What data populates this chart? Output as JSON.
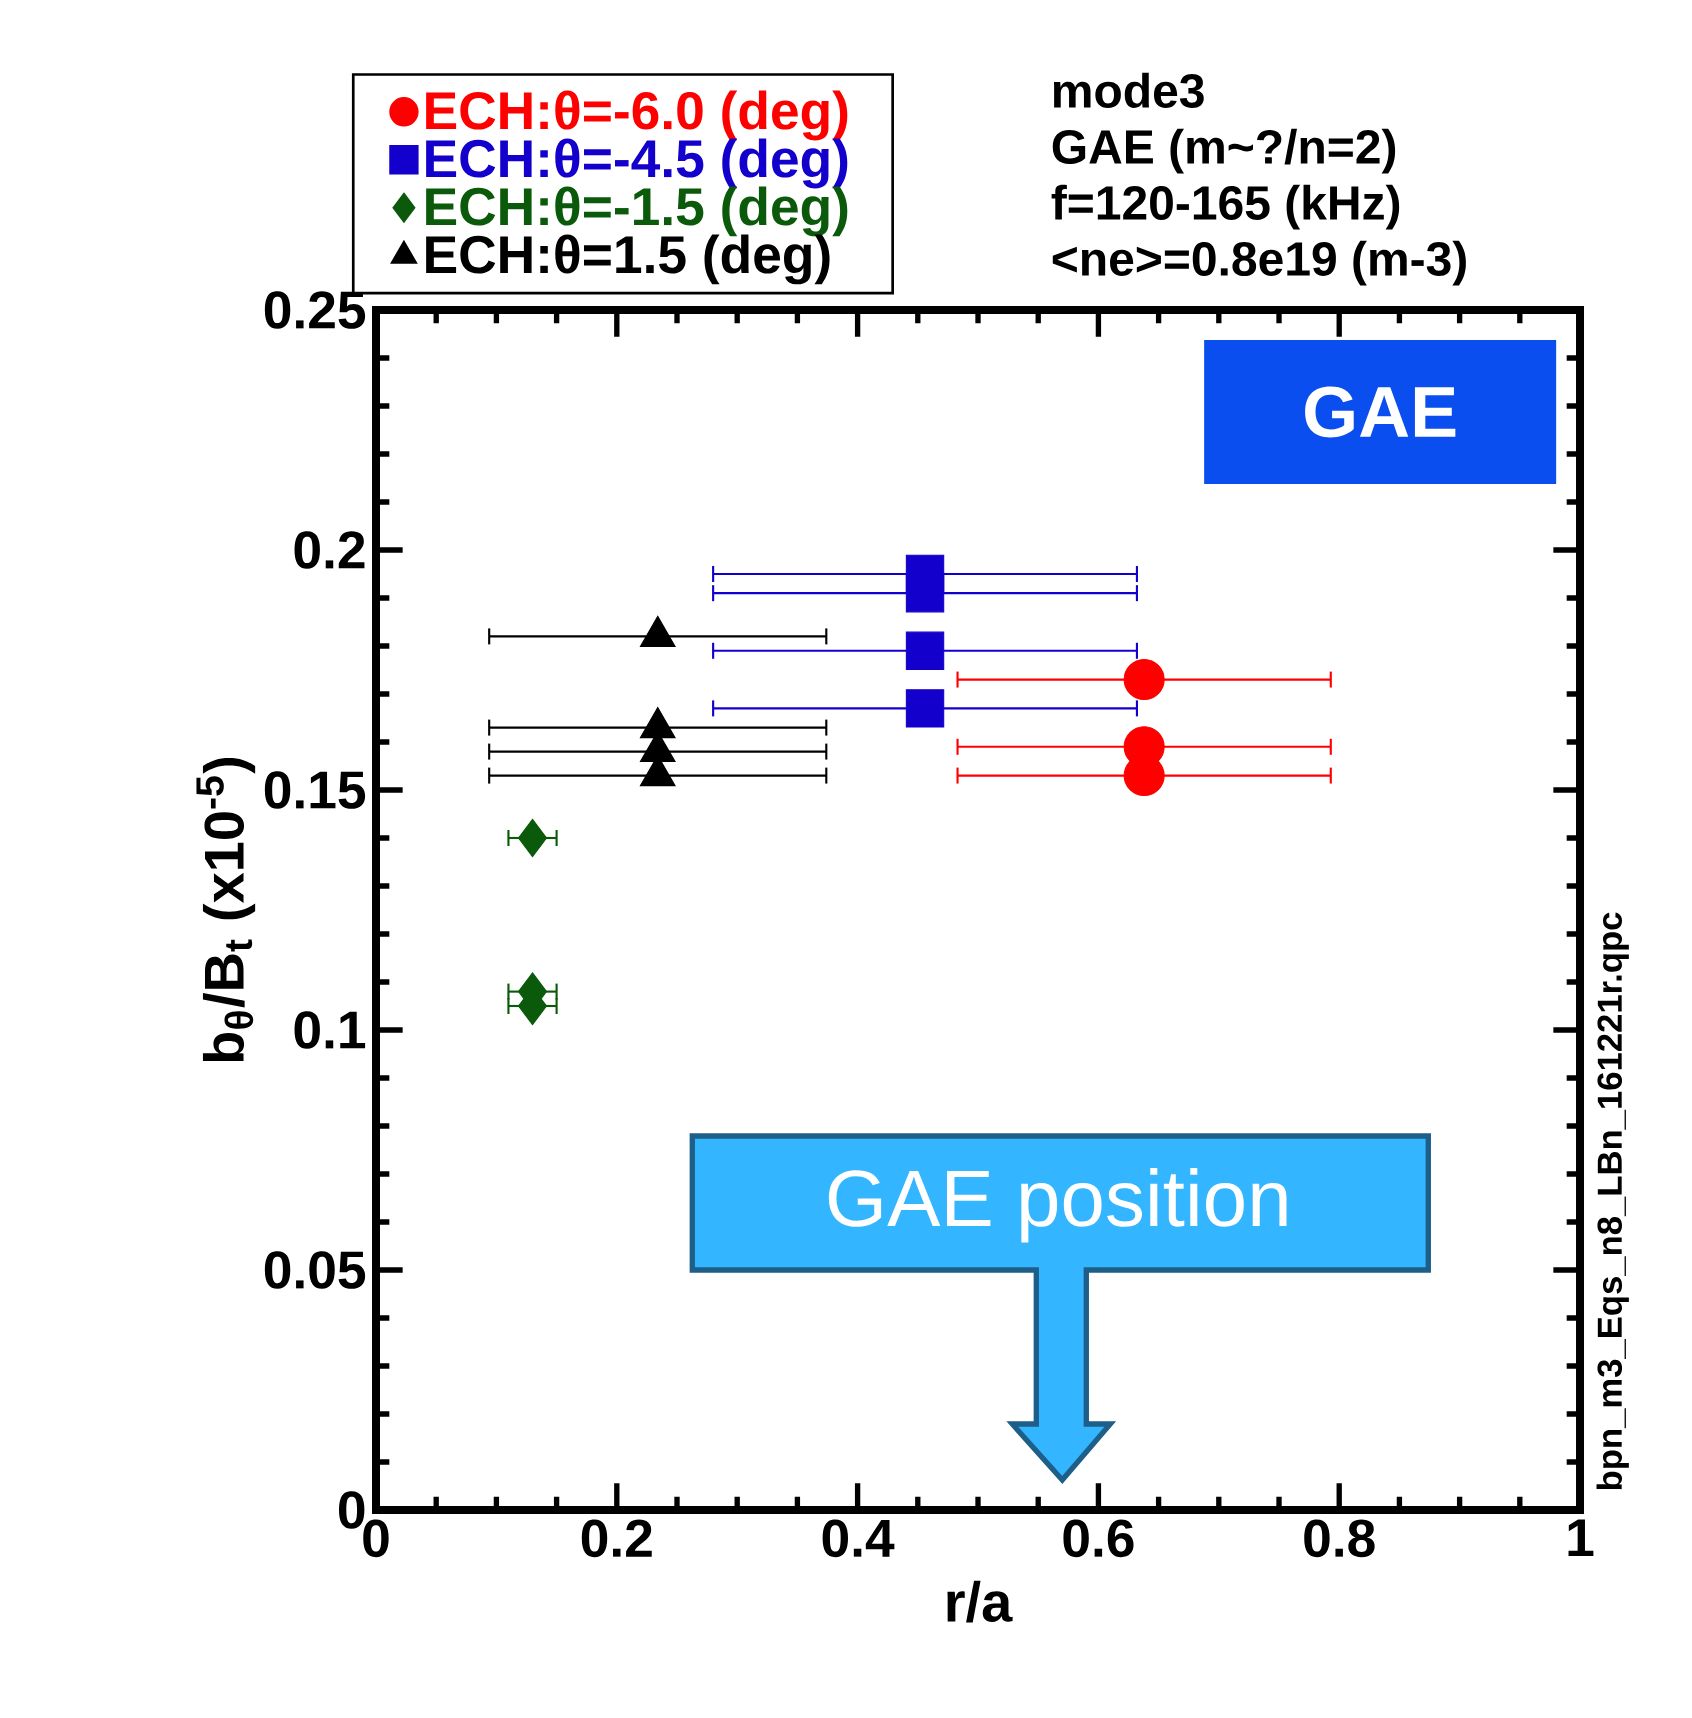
{
  "chart_data": {
    "type": "scatter",
    "xlabel": "r/a",
    "ylabel": "b$_{θ}$/B$_{t}$ (x10$^{-5}$)",
    "xlim": [
      0,
      1
    ],
    "xticks": [
      0,
      0.2,
      0.4,
      0.6,
      0.8,
      1
    ],
    "ylim": [
      0,
      0.25
    ],
    "yticks": [
      0,
      0.05,
      0.1,
      0.15,
      0.2,
      0.25
    ],
    "legend": "top left",
    "series": [
      {
        "name": "ECH:θ=-6.0 (deg)",
        "color": "#ff0000",
        "marker": "circle",
        "x": [
          0.638,
          0.638,
          0.638
        ],
        "values": [
          0.173,
          0.159,
          0.153
        ],
        "xerrors": [
          0.155,
          0.155,
          0.155
        ]
      },
      {
        "name": "ECH:θ=-4.5 (deg)",
        "color": "#1400cc",
        "marker": "square",
        "x": [
          0.456,
          0.456,
          0.456,
          0.456
        ],
        "values": [
          0.195,
          0.191,
          0.179,
          0.167
        ],
        "xerrors": [
          0.176,
          0.176,
          0.176,
          0.176
        ]
      },
      {
        "name": "ECH:θ=-1.5 (deg)",
        "color": "#0b5a0b",
        "marker": "diamond",
        "x": [
          0.13,
          0.13,
          0.13
        ],
        "values": [
          0.14,
          0.108,
          0.105
        ],
        "xerrors": [
          0.02,
          0.02,
          0.02
        ]
      },
      {
        "name": "ECH:θ=1.5 (deg)",
        "color": "#000000",
        "marker": "triangle",
        "x": [
          0.234,
          0.234,
          0.234,
          0.234
        ],
        "values": [
          0.182,
          0.163,
          0.158,
          0.153
        ],
        "xerrors": [
          0.14,
          0.14,
          0.14,
          0.14
        ]
      }
    ],
    "annotations": [
      "mode3",
      "GAE (m~?/n=2)",
      "f=120-165 (kHz)",
      "<ne>=0.8e19 (m-3)",
      "GAE",
      "bpn_m3_Eqs_n8_LBn_161221r.qpc",
      "GAE position"
    ]
  }
}
